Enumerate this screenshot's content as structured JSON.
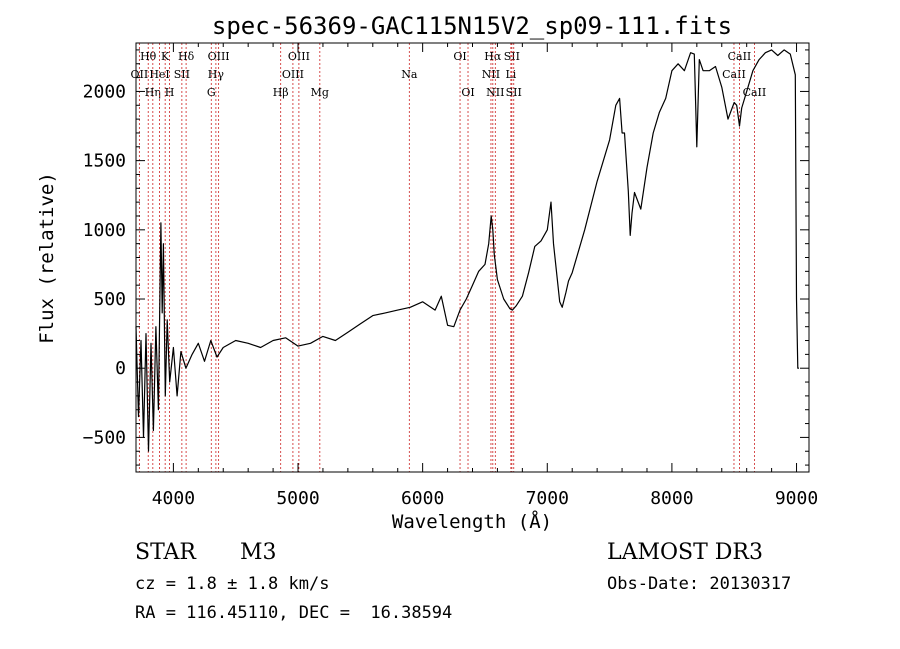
{
  "chart_data": {
    "type": "line",
    "title": "spec-56369-GAC115N15V2_sp09-111.fits",
    "xlabel": "Wavelength (Å)",
    "ylabel": "Flux (relative)",
    "xlim": [
      3700,
      9100
    ],
    "ylim": [
      -750,
      2350
    ],
    "x_ticks": [
      4000,
      5000,
      6000,
      7000,
      8000,
      9000
    ],
    "y_ticks": [
      -500,
      0,
      500,
      1000,
      1500,
      2000
    ],
    "x_tick_labels": [
      "4000",
      "5000",
      "6000",
      "7000",
      "8000",
      "9000"
    ],
    "y_tick_labels": [
      "−500",
      "0",
      "500",
      "1000",
      "1500",
      "2000"
    ],
    "grid": false,
    "series": [
      {
        "name": "spectrum",
        "color": "#000000",
        "x": [
          3700,
          3720,
          3740,
          3760,
          3780,
          3800,
          3820,
          3840,
          3860,
          3880,
          3900,
          3910,
          3920,
          3935,
          3950,
          3970,
          4000,
          4030,
          4060,
          4100,
          4150,
          4200,
          4250,
          4300,
          4350,
          4400,
          4500,
          4600,
          4700,
          4800,
          4900,
          5000,
          5100,
          5200,
          5300,
          5400,
          5500,
          5600,
          5700,
          5800,
          5900,
          6000,
          6100,
          6150,
          6200,
          6250,
          6300,
          6350,
          6400,
          6450,
          6500,
          6530,
          6550,
          6563,
          6575,
          6600,
          6650,
          6700,
          6720,
          6750,
          6800,
          6850,
          6900,
          6950,
          7000,
          7030,
          7050,
          7080,
          7100,
          7120,
          7150,
          7170,
          7200,
          7300,
          7400,
          7450,
          7500,
          7550,
          7580,
          7600,
          7620,
          7650,
          7665,
          7680,
          7700,
          7750,
          7800,
          7850,
          7900,
          7950,
          8000,
          8050,
          8100,
          8150,
          8180,
          8200,
          8220,
          8250,
          8300,
          8350,
          8400,
          8450,
          8500,
          8520,
          8542,
          8560,
          8600,
          8650,
          8700,
          8750,
          8800,
          8850,
          8900,
          8950,
          8990,
          9000,
          9010,
          9020
        ],
        "y": [
          300,
          -350,
          200,
          -500,
          250,
          -600,
          180,
          -450,
          300,
          -300,
          1050,
          400,
          900,
          -200,
          350,
          -100,
          150,
          -200,
          120,
          0,
          100,
          180,
          50,
          200,
          80,
          150,
          200,
          180,
          150,
          200,
          220,
          160,
          180,
          230,
          200,
          260,
          320,
          380,
          400,
          420,
          440,
          480,
          420,
          520,
          310,
          300,
          420,
          500,
          600,
          700,
          750,
          900,
          1100,
          1000,
          820,
          640,
          500,
          430,
          420,
          450,
          520,
          690,
          880,
          920,
          1000,
          1200,
          900,
          650,
          480,
          440,
          550,
          630,
          690,
          1000,
          1350,
          1500,
          1650,
          1900,
          1950,
          1700,
          1700,
          1280,
          960,
          1120,
          1270,
          1150,
          1450,
          1700,
          1850,
          1950,
          2150,
          2200,
          2150,
          2280,
          2270,
          1600,
          2230,
          2150,
          2150,
          2180,
          2030,
          1800,
          1920,
          1900,
          1750,
          1880,
          2000,
          2150,
          2230,
          2280,
          2300,
          2260,
          2300,
          2270,
          2120,
          500,
          0,
          0
        ]
      }
    ],
    "line_markers": [
      {
        "wl": 3727,
        "label": "OII",
        "row": 1
      },
      {
        "wl": 3798,
        "label": "Hθ",
        "row": 0
      },
      {
        "wl": 3835,
        "label": "Hη",
        "row": 2
      },
      {
        "wl": 3889,
        "label": "HeI",
        "row": 1
      },
      {
        "wl": 3934,
        "label": "K",
        "row": 0
      },
      {
        "wl": 3969,
        "label": "H",
        "row": 2
      },
      {
        "wl": 4068,
        "label": "SII",
        "row": 1
      },
      {
        "wl": 4102,
        "label": "Hδ",
        "row": 0
      },
      {
        "wl": 4304,
        "label": "G",
        "row": 2
      },
      {
        "wl": 4341,
        "label": "Hγ",
        "row": 1
      },
      {
        "wl": 4363,
        "label": "OIII",
        "row": 0
      },
      {
        "wl": 4861,
        "label": "Hβ",
        "row": 2
      },
      {
        "wl": 4959,
        "label": "OIII",
        "row": 1
      },
      {
        "wl": 5007,
        "label": "OIII",
        "row": 0
      },
      {
        "wl": 5175,
        "label": "Mg",
        "row": 2
      },
      {
        "wl": 5893,
        "label": "Na",
        "row": 1
      },
      {
        "wl": 6300,
        "label": "OI",
        "row": 0
      },
      {
        "wl": 6364,
        "label": "OI",
        "row": 2
      },
      {
        "wl": 6548,
        "label": "NII",
        "row": 1
      },
      {
        "wl": 6563,
        "label": "Hα",
        "row": 0
      },
      {
        "wl": 6583,
        "label": "NII",
        "row": 2
      },
      {
        "wl": 6708,
        "label": "Li",
        "row": 1
      },
      {
        "wl": 6716,
        "label": "SII",
        "row": 0
      },
      {
        "wl": 6731,
        "label": "SII",
        "row": 2
      },
      {
        "wl": 8498,
        "label": "CaII",
        "row": 1
      },
      {
        "wl": 8542,
        "label": "CaII",
        "row": 0
      },
      {
        "wl": 8662,
        "label": "CaII",
        "row": 2
      }
    ],
    "colors": {
      "spectrum": "#000000",
      "markers": "#cc2222",
      "axes": "#000000"
    }
  },
  "info": {
    "object_class": "STAR",
    "subclass": "M3",
    "redshift": "cz = 1.8 ± 1.8 km/s",
    "coords": "RA = 116.45110, DEC =  16.38594",
    "survey": "LAMOST DR3",
    "obs_date": "Obs-Date: 20130317"
  }
}
